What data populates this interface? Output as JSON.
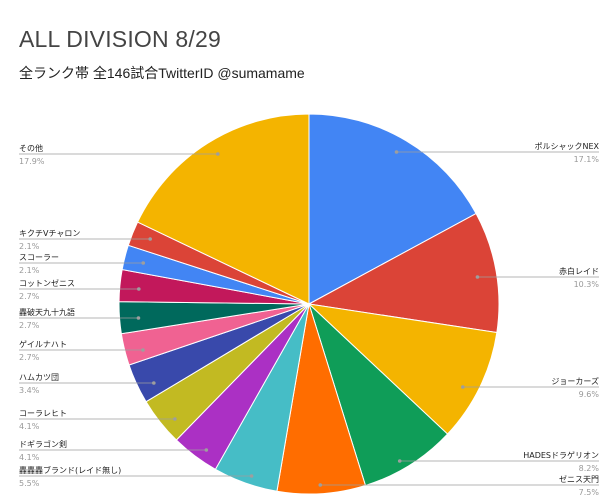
{
  "chart_data": {
    "type": "pie",
    "title": "ALL DIVISION 8/29",
    "subtitle": "全ランク帯 全146試合TwitterID @sumamame",
    "slices": [
      {
        "label": "ポルシャックNEX",
        "percent_label": "17.1%",
        "value": 17.1,
        "color": "#4285f4",
        "side": "right"
      },
      {
        "label": "赤白レイド",
        "percent_label": "10.3%",
        "value": 10.3,
        "color": "#db4437",
        "side": "right"
      },
      {
        "label": "ジョーカーズ",
        "percent_label": "9.6%",
        "value": 9.6,
        "color": "#f4b400",
        "side": "right"
      },
      {
        "label": "HADESドラゲリオン",
        "percent_label": "8.2%",
        "value": 8.2,
        "color": "#0f9d58",
        "side": "right"
      },
      {
        "label": "ゼニス天門",
        "percent_label": "7.5%",
        "value": 7.5,
        "color": "#ff6d00",
        "side": "right"
      },
      {
        "label": "轟轟轟ブランド(レイド無し)",
        "percent_label": "5.5%",
        "value": 5.5,
        "color": "#46bdc6",
        "side": "left"
      },
      {
        "label": "ドギラゴン剣",
        "percent_label": "4.1%",
        "value": 4.1,
        "color": "#ab30c4",
        "side": "left"
      },
      {
        "label": "コーラレヒト",
        "percent_label": "4.1%",
        "value": 4.1,
        "color": "#c2ba22",
        "side": "left"
      },
      {
        "label": "ハムカツ団",
        "percent_label": "3.4%",
        "value": 3.4,
        "color": "#3949ab",
        "side": "left"
      },
      {
        "label": "ゲイルナハト",
        "percent_label": "2.7%",
        "value": 2.7,
        "color": "#f06292",
        "side": "left"
      },
      {
        "label": "轟破天九十九語",
        "percent_label": "2.7%",
        "value": 2.7,
        "color": "#00695c",
        "side": "left"
      },
      {
        "label": "コットンゼニス",
        "percent_label": "2.7%",
        "value": 2.7,
        "color": "#c2185b",
        "side": "left"
      },
      {
        "label": "スコーラー",
        "percent_label": "2.1%",
        "value": 2.1,
        "color": "#4285f4",
        "side": "left"
      },
      {
        "label": "キクチVチャロン",
        "percent_label": "2.1%",
        "value": 2.1,
        "color": "#db4437",
        "side": "left"
      },
      {
        "label": "その他",
        "percent_label": "17.9%",
        "value": 17.9,
        "color": "#f4b400",
        "side": "left"
      }
    ]
  }
}
